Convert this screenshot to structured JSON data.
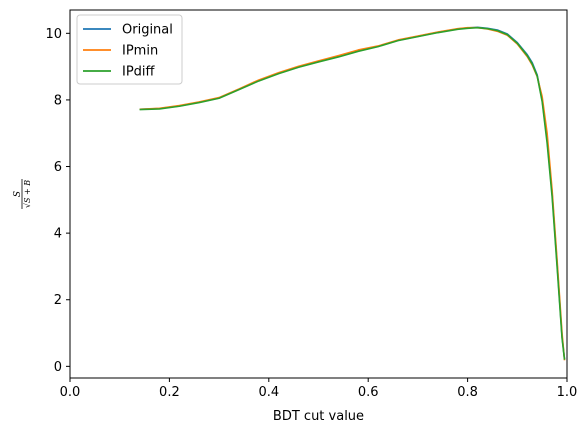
{
  "chart_data": {
    "type": "line",
    "xlabel": "BDT cut value",
    "ylabel": {
      "numerator": "S",
      "denominator": "√S + B"
    },
    "xlim": [
      0.0,
      1.0
    ],
    "ylim": [
      -0.35,
      10.7
    ],
    "xticks": [
      0.0,
      0.2,
      0.4,
      0.6,
      0.8,
      1.0
    ],
    "xtick_labels": [
      "0.0",
      "0.2",
      "0.4",
      "0.6",
      "0.8",
      "1.0"
    ],
    "yticks": [
      0,
      2,
      4,
      6,
      8,
      10
    ],
    "ytick_labels": [
      "0",
      "2",
      "4",
      "6",
      "8",
      "10"
    ],
    "grid": false,
    "legend_position": "top-left",
    "series": [
      {
        "name": "Original",
        "color": "#1f77b4",
        "x": [
          0.14,
          0.18,
          0.22,
          0.26,
          0.3,
          0.34,
          0.38,
          0.42,
          0.46,
          0.5,
          0.54,
          0.58,
          0.62,
          0.66,
          0.7,
          0.74,
          0.78,
          0.8,
          0.82,
          0.84,
          0.86,
          0.88,
          0.9,
          0.92,
          0.93,
          0.94,
          0.95,
          0.96,
          0.97,
          0.98,
          0.99,
          0.995
        ],
        "y": [
          7.72,
          7.74,
          7.82,
          7.93,
          8.06,
          8.32,
          8.58,
          8.8,
          8.99,
          9.15,
          9.3,
          9.47,
          9.61,
          9.79,
          9.91,
          10.03,
          10.13,
          10.16,
          10.18,
          10.15,
          10.1,
          9.98,
          9.72,
          9.36,
          9.12,
          8.75,
          8.0,
          6.8,
          5.2,
          3.1,
          0.9,
          0.22
        ]
      },
      {
        "name": "IPmin",
        "color": "#ff7f0e",
        "x": [
          0.14,
          0.18,
          0.22,
          0.26,
          0.3,
          0.34,
          0.38,
          0.42,
          0.46,
          0.5,
          0.54,
          0.58,
          0.62,
          0.66,
          0.7,
          0.74,
          0.78,
          0.8,
          0.82,
          0.84,
          0.86,
          0.88,
          0.9,
          0.92,
          0.93,
          0.94,
          0.95,
          0.96,
          0.97,
          0.98,
          0.99,
          0.995
        ],
        "y": [
          7.72,
          7.75,
          7.83,
          7.94,
          8.07,
          8.33,
          8.6,
          8.82,
          9.01,
          9.17,
          9.33,
          9.5,
          9.62,
          9.8,
          9.92,
          10.04,
          10.14,
          10.17,
          10.17,
          10.13,
          10.06,
          9.94,
          9.68,
          9.3,
          9.05,
          8.7,
          8.1,
          7.0,
          5.3,
          3.2,
          1.0,
          0.18
        ]
      },
      {
        "name": "IPdiff",
        "color": "#2ca02c",
        "x": [
          0.14,
          0.18,
          0.22,
          0.26,
          0.3,
          0.34,
          0.38,
          0.42,
          0.46,
          0.5,
          0.54,
          0.58,
          0.62,
          0.66,
          0.7,
          0.74,
          0.78,
          0.8,
          0.82,
          0.84,
          0.86,
          0.88,
          0.9,
          0.92,
          0.93,
          0.94,
          0.95,
          0.96,
          0.97,
          0.98,
          0.99,
          0.995
        ],
        "y": [
          7.71,
          7.73,
          7.81,
          7.92,
          8.05,
          8.31,
          8.57,
          8.79,
          8.98,
          9.14,
          9.29,
          9.46,
          9.6,
          9.78,
          9.9,
          10.02,
          10.12,
          10.15,
          10.17,
          10.14,
          10.08,
          9.96,
          9.7,
          9.33,
          9.08,
          8.72,
          7.95,
          6.7,
          5.1,
          3.0,
          0.85,
          0.2
        ]
      }
    ]
  }
}
